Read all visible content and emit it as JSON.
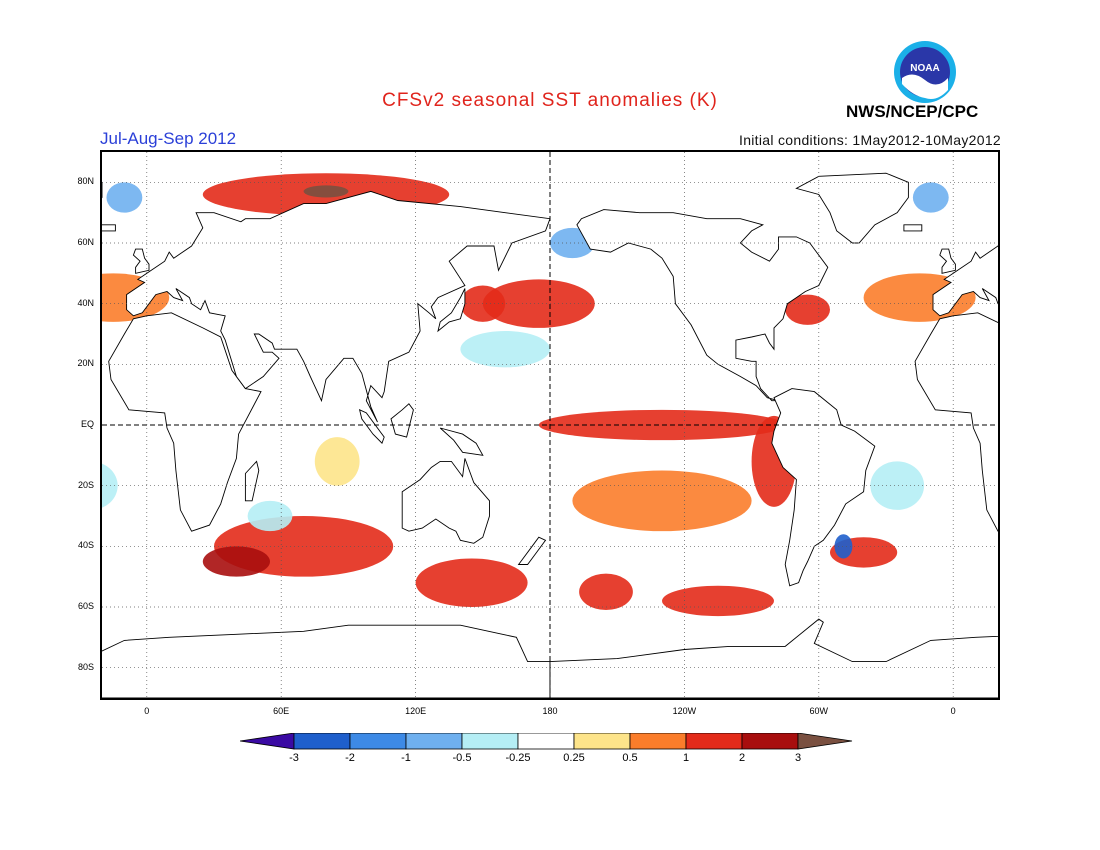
{
  "header": {
    "title": "CFSv2 seasonal SST anomalies (K)",
    "period": "Jul-Aug-Sep 2012",
    "initial_conditions": "Initial conditions: 1May2012-10May2012",
    "agency": "NWS/NCEP/CPC",
    "logo_text": "NOAA"
  },
  "colors": {
    "title": "#e0241c",
    "period": "#2b40d8",
    "coast": "#000000",
    "grid": "#555555"
  },
  "axes": {
    "lat_labels": [
      "80N",
      "60N",
      "40N",
      "20N",
      "EQ",
      "20S",
      "40S",
      "60S",
      "80S"
    ],
    "lat_values": [
      80,
      60,
      40,
      20,
      0,
      -20,
      -40,
      -60,
      -80
    ],
    "lon_labels": [
      "0",
      "60E",
      "120E",
      "180",
      "120W",
      "60W",
      "0"
    ],
    "lon_values": [
      0,
      60,
      120,
      180,
      240,
      300,
      360
    ],
    "lon_range": [
      -20,
      380
    ],
    "lat_range": [
      -90,
      90
    ],
    "grid": "dotted",
    "reference_lines": [
      "EQ",
      "180"
    ]
  },
  "colorbar": {
    "labels": [
      "-3",
      "-2",
      "-1",
      "-0.5",
      "-0.25",
      "0.25",
      "0.5",
      "1",
      "2",
      "3"
    ],
    "colors": [
      "#3a0aa3",
      "#1f5fcc",
      "#3d8ae6",
      "#6fb0ef",
      "#b5eef5",
      "#ffffff",
      "#fde48a",
      "#fb7d2b",
      "#e32b1a",
      "#a80e0e",
      "#7a5040"
    ]
  },
  "anomalies": [
    {
      "name": "north-atlantic-greenland-sea",
      "lon": 80,
      "lat": 76,
      "rx": 55,
      "ry": 7,
      "level": 1.5
    },
    {
      "name": "barents-core",
      "lon": 80,
      "lat": 77,
      "rx": 10,
      "ry": 2,
      "level": 3.2
    },
    {
      "name": "north-pacific-warm",
      "lon": 175,
      "lat": 40,
      "rx": 25,
      "ry": 8,
      "level": 1
    },
    {
      "name": "north-pacific-west",
      "lon": 150,
      "lat": 40,
      "rx": 10,
      "ry": 6,
      "level": 1.4
    },
    {
      "name": "equatorial-pacific",
      "lon": 230,
      "lat": 0,
      "rx": 55,
      "ry": 5,
      "level": 1.2
    },
    {
      "name": "peru-coast",
      "lon": 280,
      "lat": -12,
      "rx": 10,
      "ry": 15,
      "level": 1.4
    },
    {
      "name": "south-indian-ocean",
      "lon": 70,
      "lat": -40,
      "rx": 40,
      "ry": 10,
      "level": 1.2
    },
    {
      "name": "south-indian-core",
      "lon": 40,
      "lat": -45,
      "rx": 15,
      "ry": 5,
      "level": 2.2
    },
    {
      "name": "australia-south",
      "lon": 145,
      "lat": -52,
      "rx": 25,
      "ry": 8,
      "level": 1.2
    },
    {
      "name": "south-pacific-central",
      "lon": 205,
      "lat": -55,
      "rx": 12,
      "ry": 6,
      "level": 1.3
    },
    {
      "name": "southern-ocean-east",
      "lon": 255,
      "lat": -58,
      "rx": 25,
      "ry": 5,
      "level": 1
    },
    {
      "name": "south-atlantic-warm",
      "lon": 320,
      "lat": -42,
      "rx": 15,
      "ry": 5,
      "level": 1.4
    },
    {
      "name": "south-atlantic-cold",
      "lon": 311,
      "lat": -40,
      "rx": 4,
      "ry": 4,
      "level": -2.5
    },
    {
      "name": "subtropical-pacific-south",
      "lon": 230,
      "lat": -25,
      "rx": 40,
      "ry": 10,
      "level": 0.5
    },
    {
      "name": "north-pacific-cool",
      "lon": 160,
      "lat": 25,
      "rx": 20,
      "ry": 6,
      "level": -0.4
    },
    {
      "name": "arctic-cool-west",
      "lon": -10,
      "lat": 75,
      "rx": 8,
      "ry": 5,
      "level": -0.8
    },
    {
      "name": "bering-cool",
      "lon": 190,
      "lat": 60,
      "rx": 10,
      "ry": 5,
      "level": -0.6
    },
    {
      "name": "atlantic-ne-warm",
      "lon": 345,
      "lat": 42,
      "rx": 25,
      "ry": 8,
      "level": 0.6
    },
    {
      "name": "gulf-stream-warm",
      "lon": 295,
      "lat": 38,
      "rx": 10,
      "ry": 5,
      "level": 1
    },
    {
      "name": "south-atlantic-cool",
      "lon": 335,
      "lat": -20,
      "rx": 12,
      "ry": 8,
      "level": -0.3
    },
    {
      "name": "equatorial-indian-warm",
      "lon": 85,
      "lat": -12,
      "rx": 10,
      "ry": 8,
      "level": 0.4
    },
    {
      "name": "madagascar-cool",
      "lon": 55,
      "lat": -30,
      "rx": 10,
      "ry": 5,
      "level": -0.3
    }
  ]
}
